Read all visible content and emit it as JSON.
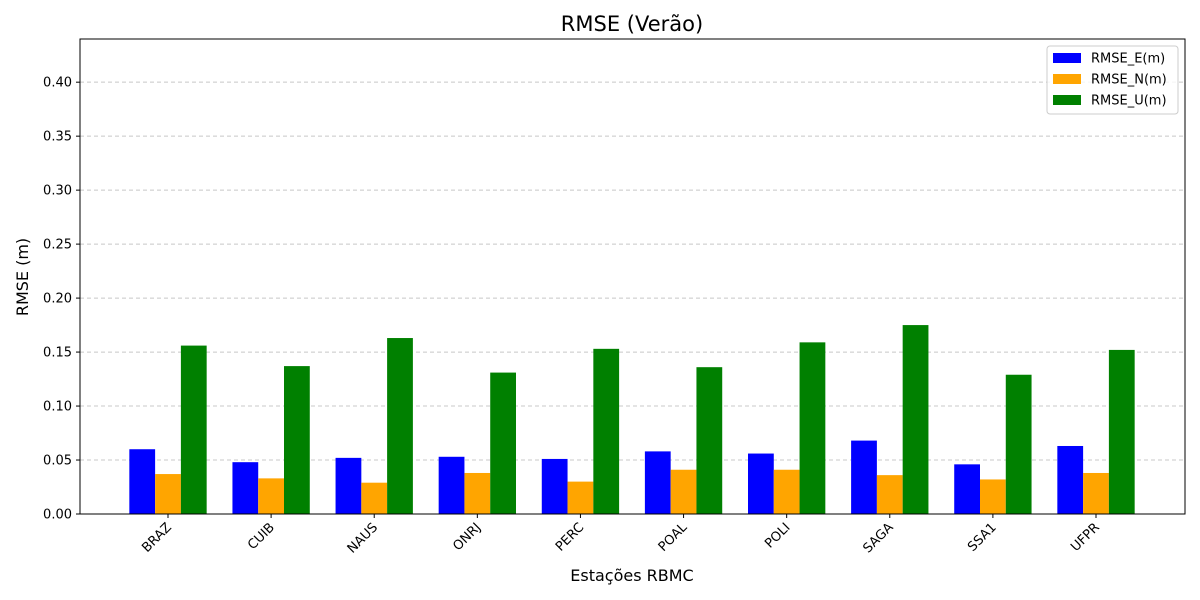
{
  "chart_data": {
    "type": "bar",
    "title": "RMSE (Verão)",
    "xlabel": "Estações RBMC",
    "ylabel": "RMSE (m)",
    "categories": [
      "BRAZ",
      "CUIB",
      "NAUS",
      "ONRJ",
      "PERC",
      "POAL",
      "POLI",
      "SAGA",
      "SSA1",
      "UFPR"
    ],
    "series": [
      {
        "name": "RMSE_E(m)",
        "color": "#0000ff",
        "values": [
          0.06,
          0.048,
          0.052,
          0.053,
          0.051,
          0.058,
          0.056,
          0.068,
          0.046,
          0.063
        ]
      },
      {
        "name": "RMSE_N(m)",
        "color": "#ffa500",
        "values": [
          0.037,
          0.033,
          0.029,
          0.038,
          0.03,
          0.041,
          0.041,
          0.036,
          0.032,
          0.038
        ]
      },
      {
        "name": "RMSE_U(m)",
        "color": "#008000",
        "values": [
          0.156,
          0.137,
          0.163,
          0.131,
          0.153,
          0.136,
          0.159,
          0.175,
          0.129,
          0.152
        ]
      }
    ],
    "ylim": [
      0,
      0.44
    ],
    "yticks": [
      "0.00",
      "0.05",
      "0.10",
      "0.15",
      "0.20",
      "0.25",
      "0.30",
      "0.35",
      "0.40"
    ],
    "grid": "y-dashed",
    "legend_position": "top-right"
  }
}
